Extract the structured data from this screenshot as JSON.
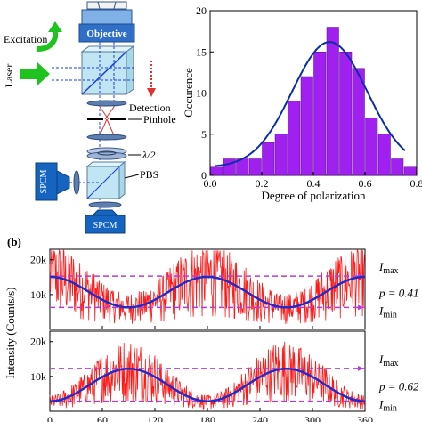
{
  "setup": {
    "labels": {
      "objective": "Objective",
      "excitation": "Excitation",
      "laser": "Laser",
      "detection": "Detection",
      "pinhole": "Pinhole",
      "half_wave": "λ/2",
      "pbs": "PBS",
      "spcm_left": "SPCM",
      "spcm_bottom": "SPCM"
    },
    "colors": {
      "objective_blue": "#2f6fc6",
      "cube_fill": "#bfe6f2",
      "spcm_fill": "#1565c0",
      "excitation_green": "#1ec31e",
      "detection_red": "#e5302f",
      "beam_blue": "#1d3fd8"
    }
  },
  "chart_data": [
    {
      "type": "bar",
      "xlabel": "Degree of polarization",
      "ylabel": "Occurence",
      "xlim": [
        0.0,
        0.8
      ],
      "ylim": [
        0,
        20
      ],
      "xticks": [
        "0.0",
        "0.2",
        "0.4",
        "0.6",
        "0.8"
      ],
      "yticks": [
        "0",
        "5",
        "10",
        "15",
        "20"
      ],
      "bin_width": 0.05,
      "x": [
        0.0,
        0.05,
        0.1,
        0.15,
        0.2,
        0.25,
        0.3,
        0.35,
        0.4,
        0.45,
        0.5,
        0.55,
        0.6,
        0.65,
        0.7,
        0.75
      ],
      "values": [
        1,
        2,
        2,
        2,
        4,
        5,
        9,
        12,
        15,
        18,
        15,
        13,
        7,
        5,
        2,
        1
      ],
      "fit": {
        "type": "gaussian",
        "amplitude": 15.2,
        "center": 0.463,
        "sigma": 0.145,
        "baseline": 1.0
      },
      "colors": {
        "bar": "#a020f0",
        "bar_edge": "#5a0d8c",
        "fit": "#0a2ea8"
      }
    },
    {
      "type": "line",
      "panel_label": "(b)",
      "ylabel": "Intensity (Counts/s)",
      "xlim": [
        0,
        360
      ],
      "xticks": [
        "0",
        "60",
        "120",
        "180",
        "240",
        "300",
        "360"
      ],
      "subplots": [
        {
          "ylim": [
            0,
            23000
          ],
          "yticks": [
            {
              "v": 10000,
              "label": "10k"
            },
            {
              "v": 20000,
              "label": "20k"
            }
          ],
          "fit": {
            "mean": 10700,
            "amplitude": 4400,
            "phase_deg": 180
          },
          "imax": 15300,
          "imin": 6300,
          "labels": {
            "imax": "I",
            "imax_sub": "max",
            "imin": "I",
            "imin_sub": "min",
            "p": "p = 0.41"
          }
        },
        {
          "ylim": [
            0,
            23000
          ],
          "yticks": [
            {
              "v": 10000,
              "label": "10k"
            },
            {
              "v": 20000,
              "label": "20k"
            }
          ],
          "fit": {
            "mean": 7550,
            "amplitude": 4650,
            "phase_deg": 90
          },
          "imax": 12300,
          "imin": 2900,
          "labels": {
            "imax": "I",
            "imax_sub": "max",
            "imin": "I",
            "imin_sub": "min",
            "p": "p = 0.62"
          }
        }
      ],
      "colors": {
        "trace": "#ff1a1a",
        "fit": "#1f2cc8",
        "ref": "#b43cdc"
      }
    }
  ]
}
